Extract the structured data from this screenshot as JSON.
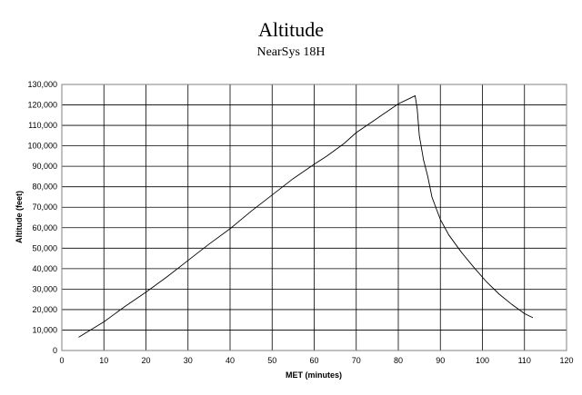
{
  "chart_data": {
    "type": "line",
    "title": "Altitude",
    "subtitle": "NearSys 18H",
    "xlabel": "MET (minutes)",
    "ylabel": "Altitude (feet)",
    "xlim": [
      0,
      120
    ],
    "ylim": [
      0,
      130000
    ],
    "x_ticks": [
      0,
      10,
      20,
      30,
      40,
      50,
      60,
      70,
      80,
      90,
      100,
      110,
      120
    ],
    "y_ticks": [
      0,
      10000,
      20000,
      30000,
      40000,
      50000,
      60000,
      70000,
      80000,
      90000,
      100000,
      110000,
      120000,
      130000
    ],
    "x_tick_labels": [
      "0",
      "10",
      "20",
      "30",
      "40",
      "50",
      "60",
      "70",
      "80",
      "90",
      "100",
      "110",
      "120"
    ],
    "y_tick_labels": [
      "0",
      "10,000",
      "20,000",
      "30,000",
      "40,000",
      "50,000",
      "60,000",
      "70,000",
      "80,000",
      "90,000",
      "100,000",
      "110,000",
      "120,000",
      "130,000"
    ],
    "grid": true,
    "legend": "none",
    "series": [
      {
        "color": "#000000",
        "x": [
          4,
          10,
          15,
          20,
          25,
          30,
          35,
          40,
          45,
          50,
          55,
          60,
          63,
          67,
          70,
          75,
          80,
          83,
          84,
          84.5,
          85,
          86,
          87,
          88,
          89,
          90,
          92,
          95,
          98,
          101,
          104,
          107,
          110,
          112
        ],
        "y": [
          6500,
          14000,
          21500,
          28500,
          36000,
          44000,
          52000,
          59500,
          68000,
          76000,
          84000,
          91000,
          95000,
          101000,
          106500,
          113500,
          120500,
          123500,
          124500,
          118000,
          105000,
          93000,
          85000,
          75000,
          69500,
          64000,
          56500,
          48000,
          40500,
          33500,
          27500,
          22500,
          18000,
          16000
        ]
      }
    ]
  }
}
